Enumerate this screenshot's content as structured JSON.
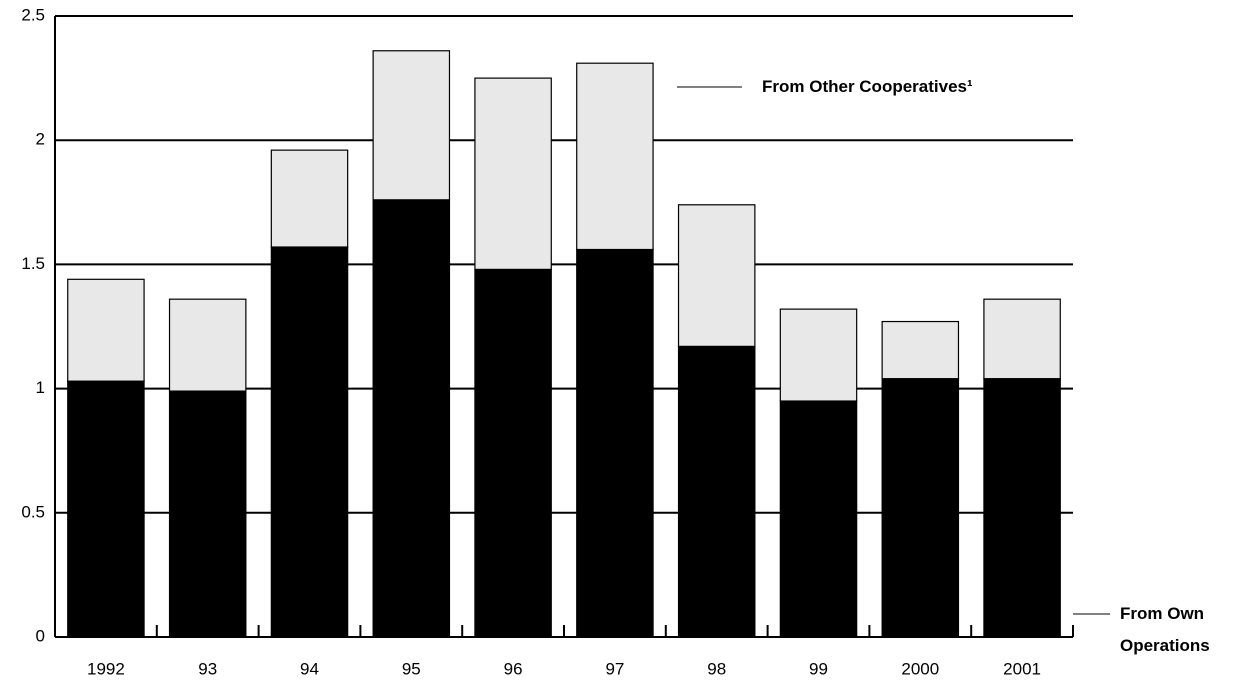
{
  "chart_data": {
    "type": "stacked_bar",
    "categories": [
      "1992",
      "93",
      "94",
      "95",
      "96",
      "97",
      "98",
      "99",
      "2000",
      "2001"
    ],
    "series": [
      {
        "name": "From Own Operations",
        "color": "#000000",
        "values": [
          1.03,
          0.99,
          1.57,
          1.76,
          1.48,
          1.56,
          1.17,
          0.95,
          1.04,
          1.04
        ]
      },
      {
        "name": "From Other Cooperatives¹",
        "color": "#e8e8e8",
        "values": [
          0.41,
          0.37,
          0.39,
          0.6,
          0.77,
          0.75,
          0.57,
          0.37,
          0.23,
          0.32
        ]
      }
    ],
    "ylim": [
      0,
      2.5
    ],
    "yticks": [
      0,
      0.5,
      1,
      1.5,
      2,
      2.5
    ],
    "grid": true
  }
}
